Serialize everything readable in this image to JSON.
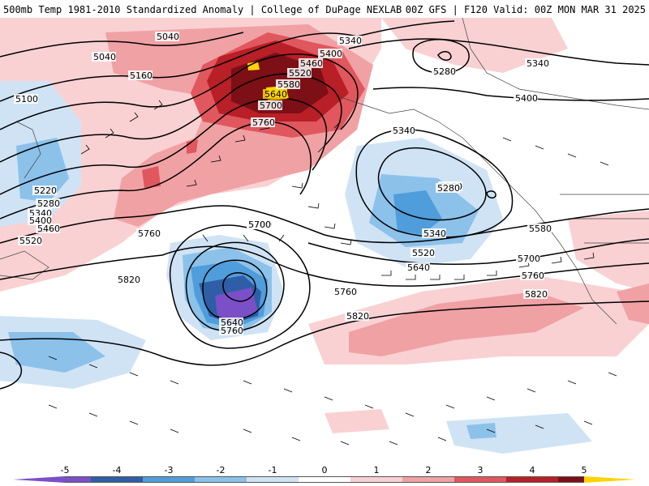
{
  "header": {
    "title_left": "500mb Temp 1981-2010 Standardized Anomaly | College of DuPage NEXLAB",
    "title_right": "00Z GFS | F120 Valid: 00Z MON MAR 31 2025"
  },
  "colors": {
    "anom_m5": "#7b4fc7",
    "anom_m4": "#2f5ea6",
    "anom_m3": "#4f9ddb",
    "anom_m2": "#8cc1ea",
    "anom_m1": "#cfe3f5",
    "anom_0": "#ffffff",
    "anom_p1": "#f9d1d3",
    "anom_p2": "#f0a1a4",
    "anom_p3": "#e0575d",
    "anom_p4": "#b81f27",
    "anom_p5": "#7d0f16",
    "anom_max": "#ffd400",
    "contour": "#000000",
    "coast": "#444444"
  },
  "colorbar": {
    "ticks": [
      "-5",
      "-4",
      "-3",
      "-2",
      "-1",
      "0",
      "1",
      "2",
      "3",
      "4",
      "5"
    ]
  },
  "contour_labels": [
    "5040",
    "5040",
    "5100",
    "5160",
    "5220",
    "5280",
    "5340",
    "5400",
    "5460",
    "5520",
    "5340",
    "5400",
    "5460",
    "5520",
    "5580",
    "5640",
    "5700",
    "5760",
    "5340",
    "5280",
    "5340",
    "5400",
    "5280",
    "5340",
    "5520",
    "5580",
    "5640",
    "5700",
    "5760",
    "5700",
    "5760",
    "5820",
    "5640",
    "5760",
    "5820",
    "5760",
    "5820",
    "5280",
    "5700"
  ]
}
